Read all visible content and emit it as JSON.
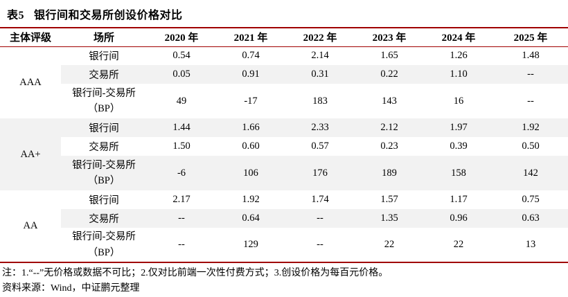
{
  "title": {
    "number": "表5",
    "text": "银行间和交易所创设价格对比"
  },
  "accent_colors": {
    "rule_red": "#a00000",
    "row_shade_gray": "#f2f2f2"
  },
  "columns": [
    "主体评级",
    "场所",
    "2020 年",
    "2021 年",
    "2022 年",
    "2023 年",
    "2024 年",
    "2025 年"
  ],
  "groups": [
    {
      "rating": "AAA",
      "rows": [
        {
          "venue": "银行间",
          "values": [
            "0.54",
            "0.74",
            "2.14",
            "1.65",
            "1.26",
            "1.48"
          ]
        },
        {
          "venue": "交易所",
          "values": [
            "0.05",
            "0.91",
            "0.31",
            "0.22",
            "1.10",
            "--"
          ]
        },
        {
          "venue": "银行间-交易所\n（BP）",
          "values": [
            "49",
            "-17",
            "183",
            "143",
            "16",
            "--"
          ]
        }
      ]
    },
    {
      "rating": "AA+",
      "rows": [
        {
          "venue": "银行间",
          "values": [
            "1.44",
            "1.66",
            "2.33",
            "2.12",
            "1.97",
            "1.92"
          ]
        },
        {
          "venue": "交易所",
          "values": [
            "1.50",
            "0.60",
            "0.57",
            "0.23",
            "0.39",
            "0.50"
          ]
        },
        {
          "venue": "银行间-交易所\n（BP）",
          "values": [
            "-6",
            "106",
            "176",
            "189",
            "158",
            "142"
          ]
        }
      ]
    },
    {
      "rating": "AA",
      "rows": [
        {
          "venue": "银行间",
          "values": [
            "2.17",
            "1.92",
            "1.74",
            "1.57",
            "1.17",
            "0.75"
          ]
        },
        {
          "venue": "交易所",
          "values": [
            "--",
            "0.64",
            "--",
            "1.35",
            "0.96",
            "0.63"
          ]
        },
        {
          "venue": "银行间-交易所\n（BP）",
          "values": [
            "--",
            "129",
            "--",
            "22",
            "22",
            "13"
          ]
        }
      ]
    }
  ],
  "footer": {
    "note": "注：1.“--”无价格或数据不可比；2.仅对比前端一次性付费方式；3.创设价格为每百元价格。",
    "source": "资料来源：Wind，中证鹏元整理"
  }
}
